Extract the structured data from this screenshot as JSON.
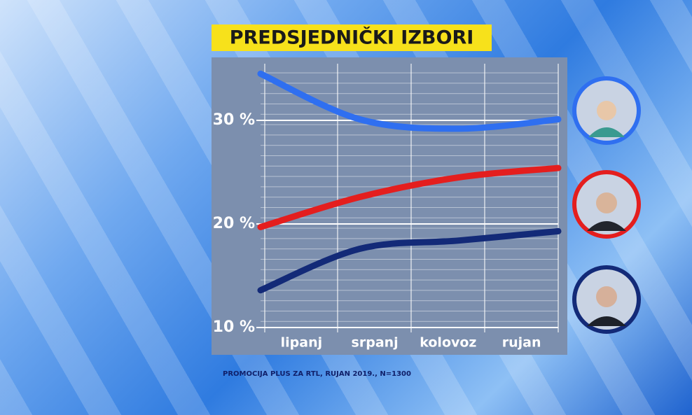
{
  "chart_data": {
    "type": "line",
    "title": "PREDSJEDNIČKI IZBORI",
    "source": "PROMOCIJA PLUS ZA RTL, RUJAN 2019., N=1300",
    "categories": [
      "lipanj",
      "srpanj",
      "kolovoz",
      "rujan"
    ],
    "series": [
      {
        "color": "#2f6ff0",
        "values": [
          34.5,
          30.1,
          29.2,
          30.1
        ]
      },
      {
        "color": "#e41e1e",
        "values": [
          19.7,
          22.6,
          24.5,
          25.4
        ]
      },
      {
        "color": "#132a78",
        "values": [
          13.6,
          17.6,
          18.4,
          19.3
        ]
      }
    ],
    "ylim": [
      10,
      35
    ],
    "yticks": [
      {
        "value": 10,
        "label": "10 %"
      },
      {
        "value": 20,
        "label": "20 %"
      },
      {
        "value": 30,
        "label": "30 %"
      }
    ],
    "grid": true
  }
}
